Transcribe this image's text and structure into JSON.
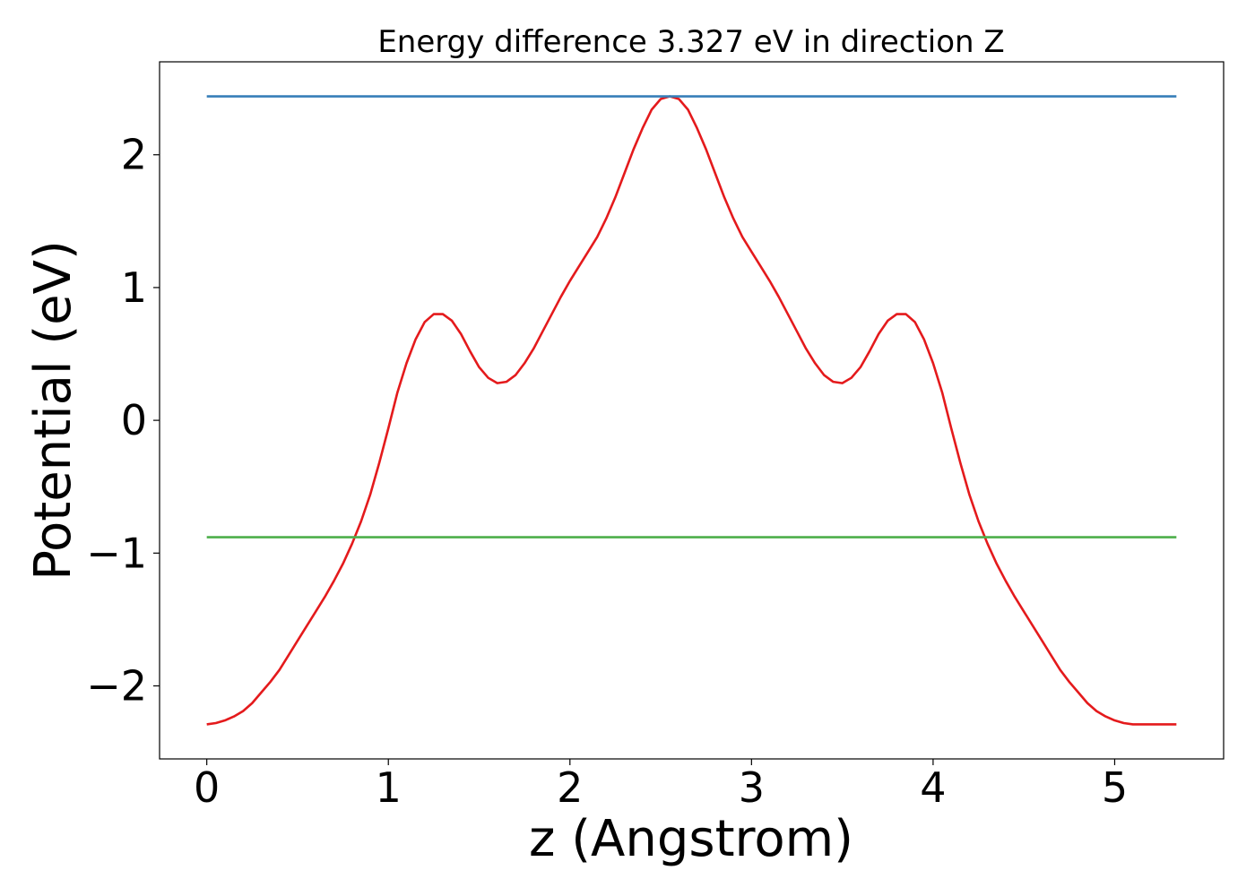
{
  "chart_data": {
    "type": "line",
    "title": "Energy difference 3.327 eV in direction Z",
    "xlabel": "z (Angstrom)",
    "ylabel": "Potential (eV)",
    "xlim": [
      -0.26,
      5.6
    ],
    "ylim": [
      -2.55,
      2.7
    ],
    "xticks": [
      0,
      1,
      2,
      3,
      4,
      5
    ],
    "xtick_labels": [
      "0",
      "1",
      "2",
      "3",
      "4",
      "5"
    ],
    "yticks": [
      -2,
      -1,
      0,
      1,
      2
    ],
    "ytick_labels": [
      "−2",
      "−1",
      "0",
      "1",
      "2"
    ],
    "grid": false,
    "series": [
      {
        "color": "#e41a1c",
        "x": [
          0,
          0.05,
          0.1,
          0.15,
          0.2,
          0.25,
          0.3,
          0.35,
          0.4,
          0.45,
          0.5,
          0.55,
          0.6,
          0.65,
          0.7,
          0.75,
          0.8,
          0.85,
          0.9,
          0.95,
          1.0,
          1.05,
          1.1,
          1.15,
          1.2,
          1.25,
          1.3,
          1.35,
          1.4,
          1.45,
          1.5,
          1.55,
          1.6,
          1.65,
          1.7,
          1.75,
          1.8,
          1.85,
          1.9,
          1.95,
          2.0,
          2.05,
          2.1,
          2.15,
          2.2,
          2.25,
          2.3,
          2.35,
          2.4,
          2.45,
          2.5,
          2.55,
          2.6,
          2.65,
          2.7,
          2.75,
          2.8,
          2.85,
          2.9,
          2.95,
          3.0,
          3.05,
          3.1,
          3.15,
          3.2,
          3.25,
          3.3,
          3.35,
          3.4,
          3.45,
          3.5,
          3.55,
          3.6,
          3.65,
          3.7,
          3.75,
          3.8,
          3.85,
          3.9,
          3.95,
          4.0,
          4.05,
          4.1,
          4.15,
          4.2,
          4.25,
          4.3,
          4.35,
          4.4,
          4.45,
          4.5,
          4.55,
          4.6,
          4.65,
          4.7,
          4.75,
          4.8,
          4.85,
          4.9,
          4.95,
          5.0,
          5.05,
          5.1,
          5.15,
          5.2,
          5.25,
          5.3,
          5.34
        ],
        "y": [
          -2.29,
          -2.28,
          -2.26,
          -2.23,
          -2.19,
          -2.13,
          -2.05,
          -1.97,
          -1.88,
          -1.77,
          -1.66,
          -1.55,
          -1.44,
          -1.33,
          -1.21,
          -1.08,
          -0.93,
          -0.76,
          -0.56,
          -0.32,
          -0.06,
          0.21,
          0.43,
          0.61,
          0.74,
          0.8,
          0.8,
          0.75,
          0.65,
          0.52,
          0.4,
          0.32,
          0.28,
          0.29,
          0.34,
          0.43,
          0.54,
          0.67,
          0.8,
          0.93,
          1.05,
          1.16,
          1.27,
          1.38,
          1.52,
          1.68,
          1.86,
          2.04,
          2.2,
          2.34,
          2.42,
          2.44,
          2.42,
          2.34,
          2.2,
          2.04,
          1.86,
          1.68,
          1.52,
          1.38,
          1.27,
          1.16,
          1.05,
          0.93,
          0.8,
          0.67,
          0.54,
          0.43,
          0.34,
          0.29,
          0.28,
          0.32,
          0.4,
          0.52,
          0.65,
          0.75,
          0.8,
          0.8,
          0.74,
          0.61,
          0.43,
          0.21,
          -0.06,
          -0.32,
          -0.56,
          -0.76,
          -0.93,
          -1.08,
          -1.21,
          -1.33,
          -1.44,
          -1.55,
          -1.66,
          -1.77,
          -1.88,
          -1.97,
          -2.05,
          -2.13,
          -2.19,
          -2.23,
          -2.26,
          -2.28,
          -2.29,
          -2.29,
          -2.29,
          -2.29,
          -2.29,
          -2.29
        ]
      },
      {
        "color": "#377eb8",
        "x": [
          0,
          5.34
        ],
        "y": [
          2.44,
          2.44
        ]
      },
      {
        "color": "#4daf4a",
        "x": [
          0,
          5.34
        ],
        "y": [
          -0.88,
          -0.88
        ]
      }
    ]
  }
}
